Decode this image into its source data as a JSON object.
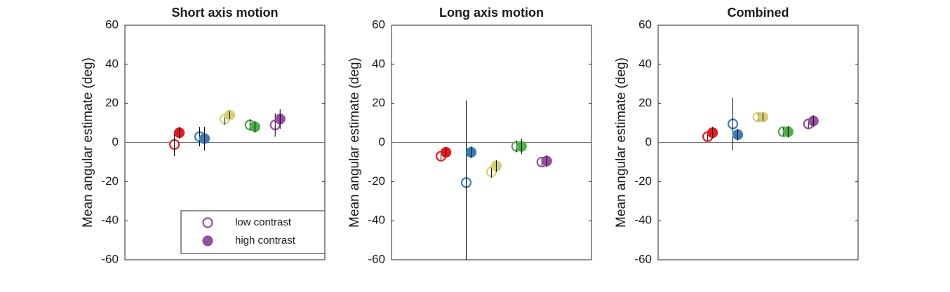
{
  "chart_data": [
    {
      "type": "scatter",
      "title": "Short axis motion",
      "y_label": "Mean angular estimate (deg)",
      "categories": [
        null,
        null,
        null,
        null,
        null
      ],
      "colors": [
        "#e41a1c",
        "#377eb8",
        "#d6cf75",
        "#4daf4a",
        "#984ea3"
      ],
      "ylim": [
        -60,
        60
      ],
      "yticks": [
        -60,
        -40,
        -20,
        0,
        20,
        40,
        60
      ],
      "legend": "lower right",
      "series": [
        {
          "name": "low contrast",
          "marker": "open",
          "values": [
            -1,
            3,
            12,
            9,
            9
          ],
          "errors": [
            6,
            5,
            3,
            3,
            6
          ]
        },
        {
          "name": "high contrast",
          "marker": "filled",
          "values": [
            5,
            2,
            14,
            8,
            12
          ],
          "errors": [
            3,
            6,
            2,
            3,
            5
          ]
        }
      ]
    },
    {
      "type": "scatter",
      "title": "Long axis motion",
      "y_label": "Mean angular estimate (deg)",
      "categories": [
        null,
        null,
        null,
        null,
        null
      ],
      "colors": [
        "#e41a1c",
        "#377eb8",
        "#d6cf75",
        "#4daf4a",
        "#984ea3"
      ],
      "ylim": [
        -60,
        60
      ],
      "yticks": [
        -60,
        -40,
        -20,
        0,
        20,
        40,
        60
      ],
      "series": [
        {
          "marker": "open",
          "values": [
            -7,
            -20.5,
            -15,
            -2,
            -10
          ],
          "errors": [
            2,
            42,
            3,
            3,
            2
          ]
        },
        {
          "marker": "filled",
          "values": [
            -5,
            -5,
            -12,
            -2,
            -9.5
          ],
          "errors": [
            2,
            3,
            3,
            4,
            3
          ]
        }
      ]
    },
    {
      "type": "scatter",
      "title": "Combined",
      "y_label": "Mean angular estimate (deg)",
      "categories": [
        null,
        null,
        null,
        null,
        null
      ],
      "colors": [
        "#e41a1c",
        "#377eb8",
        "#d6cf75",
        "#4daf4a",
        "#984ea3"
      ],
      "ylim": [
        -60,
        60
      ],
      "yticks": [
        -60,
        -40,
        -20,
        0,
        20,
        40,
        60
      ],
      "series": [
        {
          "marker": "open",
          "values": [
            3,
            9.5,
            13,
            5.5,
            9.5
          ],
          "errors": [
            2,
            13.5,
            2,
            2,
            2
          ]
        },
        {
          "marker": "filled",
          "values": [
            5,
            4,
            13,
            5.5,
            11
          ],
          "errors": [
            3,
            3,
            2,
            3,
            3
          ]
        }
      ]
    }
  ]
}
